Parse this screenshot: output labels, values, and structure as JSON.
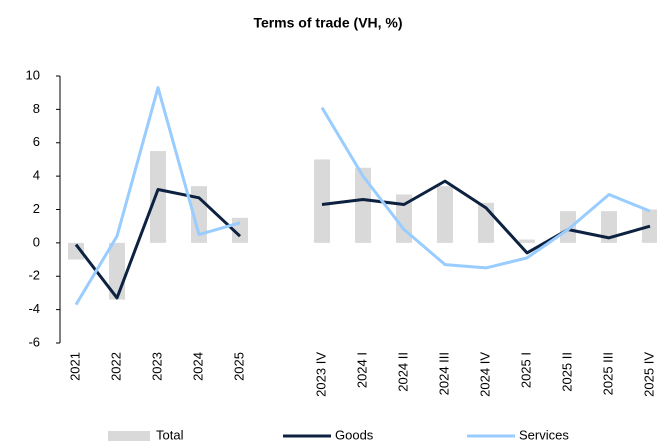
{
  "chart_data": {
    "type": "bar-line",
    "title": "Terms of trade (VH, %)",
    "categories": [
      "2021",
      "2022",
      "2023",
      "2024",
      "2025",
      null,
      "2023 IV",
      "2024 I",
      "2024 II",
      "2024 III",
      "2024 IV",
      "2025 I",
      "2025 II",
      "2025 III",
      "2025 IV"
    ],
    "series": [
      {
        "name": "Total",
        "type": "bar",
        "color": "#d9d9d9",
        "values": [
          -1.0,
          -3.4,
          5.5,
          3.4,
          1.5,
          null,
          5.0,
          4.5,
          2.9,
          3.4,
          2.4,
          0.2,
          1.9,
          1.9,
          2.0
        ]
      },
      {
        "name": "Goods",
        "type": "line",
        "color": "#0d2240",
        "values": [
          -0.1,
          -3.3,
          3.2,
          2.7,
          0.4,
          null,
          2.3,
          2.6,
          2.3,
          3.7,
          2.1,
          -0.6,
          0.8,
          0.3,
          1.0
        ]
      },
      {
        "name": "Services",
        "type": "line",
        "color": "#99ccff",
        "values": [
          -3.7,
          0.4,
          9.3,
          0.5,
          1.2,
          null,
          8.1,
          4.0,
          0.8,
          -1.3,
          -1.5,
          -0.9,
          0.8,
          2.9,
          1.9
        ]
      }
    ],
    "ylim": [
      -6,
      10
    ],
    "yticks": [
      -6,
      -4,
      -2,
      0,
      2,
      4,
      6,
      8,
      10
    ],
    "grid": false,
    "legend": "bottom"
  }
}
